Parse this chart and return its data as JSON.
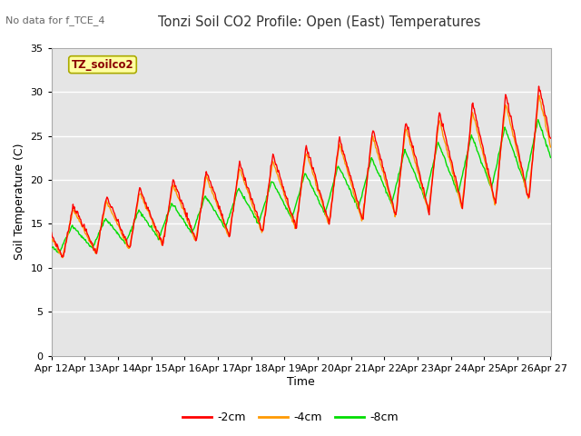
{
  "title": "Tonzi Soil CO2 Profile: Open (East) Temperatures",
  "subtitle": "No data for f_TCE_4",
  "ylabel": "Soil Temperature (C)",
  "xlabel": "Time",
  "legend_label": "TZ_soilco2",
  "series_labels": [
    "-2cm",
    "-4cm",
    "-8cm"
  ],
  "series_colors": [
    "#ff0000",
    "#ff9900",
    "#00dd00"
  ],
  "ylim": [
    0,
    35
  ],
  "xtick_labels": [
    "Apr 12",
    "Apr 13",
    "Apr 14",
    "Apr 15",
    "Apr 16",
    "Apr 17",
    "Apr 18",
    "Apr 19",
    "Apr 20",
    "Apr 21",
    "Apr 22",
    "Apr 23",
    "Apr 24",
    "Apr 25",
    "Apr 26",
    "Apr 27"
  ],
  "background_color": "#ffffff",
  "plot_bg_color": "#e5e5e5",
  "yticks": [
    0,
    5,
    10,
    15,
    20,
    25,
    30,
    35
  ],
  "grid_color": "#ffffff",
  "line_width": 1.0
}
